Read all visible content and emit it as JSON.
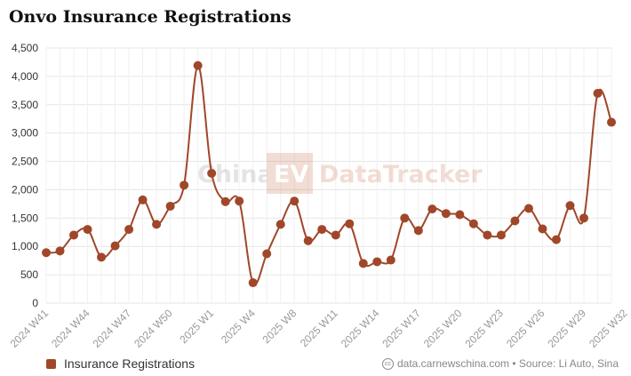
{
  "chart_data": {
    "type": "line",
    "title": "Onvo Insurance Registrations",
    "xlabel": "",
    "ylabel": "",
    "ylim": [
      0,
      4500
    ],
    "yticks": [
      "0",
      "500",
      "1,000",
      "1,500",
      "2,000",
      "2,500",
      "3,000",
      "3,500",
      "4,000",
      "4,500"
    ],
    "grid": true,
    "legend_position": "bottom-left",
    "x_tick_labels": [
      "2024 W41",
      "2024 W44",
      "2024 W47",
      "2024 W50",
      "2025 W1",
      "2025 W4",
      "2025 W8",
      "2025 W11",
      "2025 W14",
      "2025 W17",
      "2025 W20",
      "2025 W23",
      "2025 W26",
      "2025 W29",
      "2025 W32"
    ],
    "series": [
      {
        "name": "Insurance Registrations",
        "color": "#a0472a",
        "values": [
          890,
          920,
          1200,
          1300,
          810,
          1010,
          1300,
          1820,
          1390,
          1710,
          2080,
          4190,
          2290,
          1790,
          1800,
          360,
          870,
          1390,
          1800,
          1100,
          1300,
          1200,
          1400,
          700,
          730,
          760,
          1500,
          1280,
          1660,
          1580,
          1560,
          1400,
          1200,
          1200,
          1450,
          1670,
          1310,
          1120,
          1720,
          1500,
          3700,
          3190
        ]
      }
    ]
  },
  "watermark": {
    "part1": "China",
    "part2": "EV",
    "part3": "DataTracker"
  },
  "legend": {
    "label": "Insurance Registrations"
  },
  "source": {
    "icon": "cc-icon",
    "text": "data.carnewschina.com • Source: Li Auto, Sina"
  }
}
